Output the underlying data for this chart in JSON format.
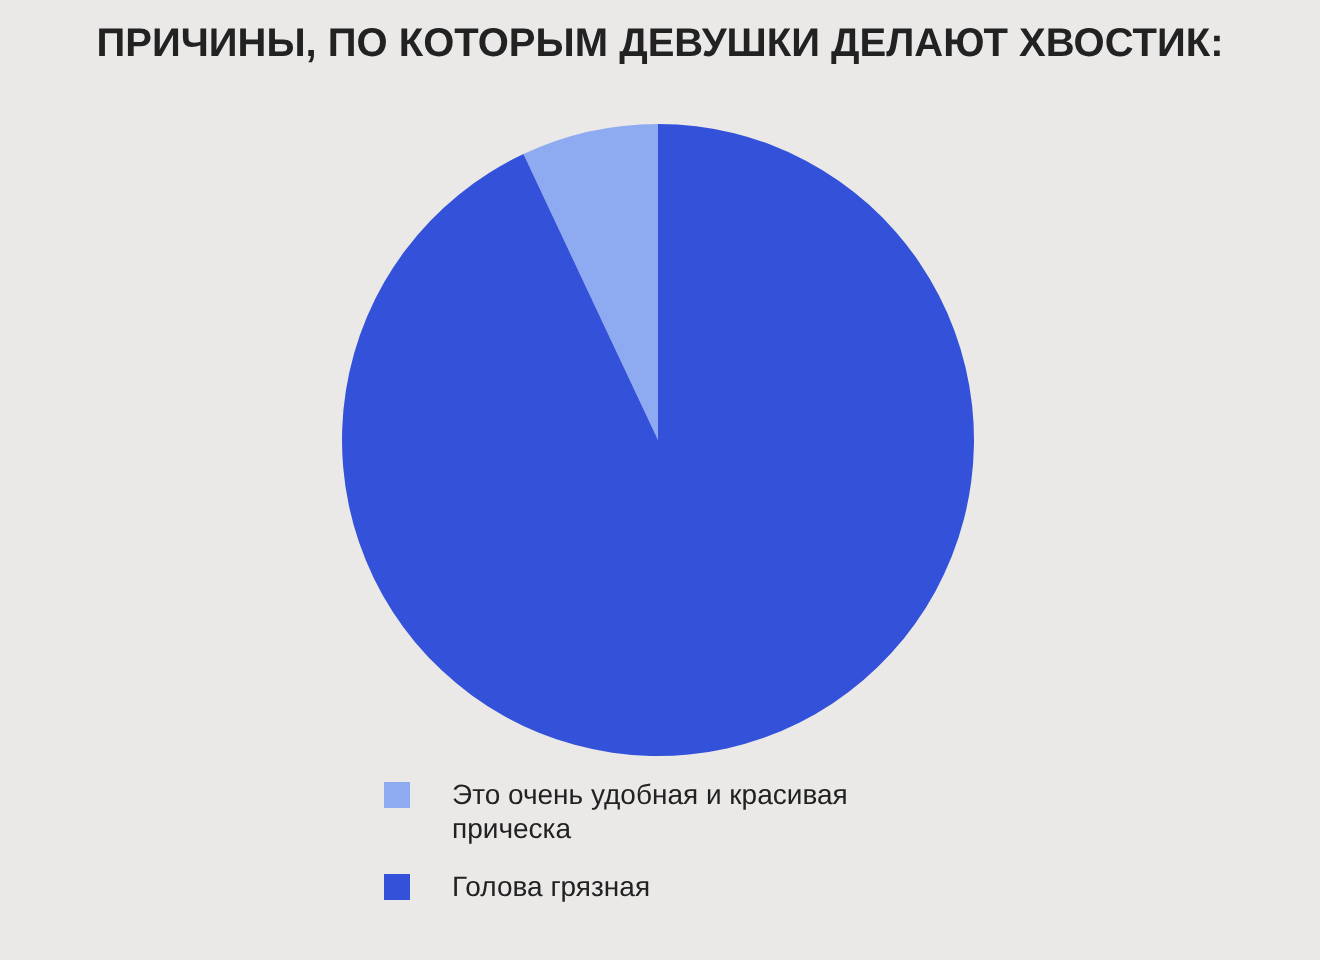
{
  "chart_data": {
    "type": "pie",
    "title": "ПРИЧИНЫ, ПО КОТОРЫМ ДЕВУШКИ ДЕЛАЮТ ХВОСТИК:",
    "categories": [
      "Это очень удобная и красивая прическа",
      "Голова грязная"
    ],
    "values": [
      7,
      93
    ],
    "colors": [
      "#8eaaf0",
      "#3352d9"
    ],
    "legend": "bottom"
  }
}
